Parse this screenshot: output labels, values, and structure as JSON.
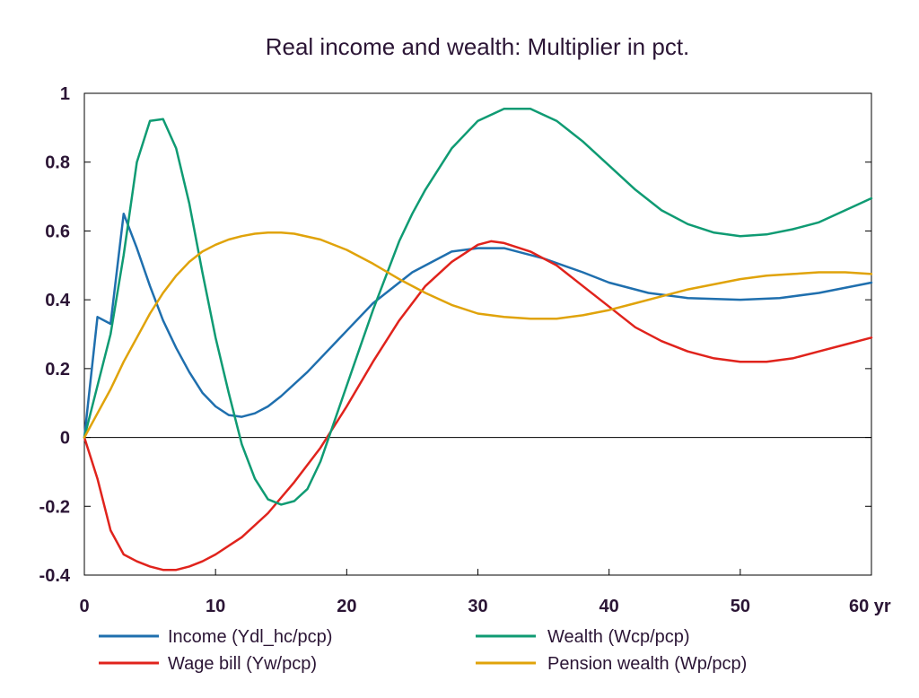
{
  "chart_data": {
    "type": "line",
    "title": "Real income and wealth: Multiplier in pct.",
    "xlabel": "",
    "ylabel": "",
    "x_unit_label": "yr",
    "xlim": [
      0,
      60
    ],
    "ylim": [
      -0.4,
      1.0
    ],
    "xticks": [
      0,
      10,
      20,
      30,
      40,
      50,
      60
    ],
    "xtick_labels": [
      "0",
      "10",
      "20",
      "30",
      "40",
      "50",
      "60 yr"
    ],
    "yticks": [
      -0.4,
      -0.2,
      0,
      0.2,
      0.4,
      0.6,
      0.8,
      1
    ],
    "ytick_labels": [
      "-0.4",
      "-0.2",
      "0",
      "0.2",
      "0.4",
      "0.6",
      "0.8",
      "1"
    ],
    "grid": false,
    "zero_line": true,
    "legend_position": "bottom",
    "series": [
      {
        "name": "Income (Ydl_hc/pcp)",
        "color": "#1f6fae",
        "points": [
          [
            0,
            0
          ],
          [
            1,
            0.35
          ],
          [
            2,
            0.33
          ],
          [
            3,
            0.65
          ],
          [
            4,
            0.55
          ],
          [
            5,
            0.44
          ],
          [
            6,
            0.34
          ],
          [
            7,
            0.26
          ],
          [
            8,
            0.19
          ],
          [
            9,
            0.13
          ],
          [
            10,
            0.09
          ],
          [
            11,
            0.065
          ],
          [
            12,
            0.06
          ],
          [
            13,
            0.07
          ],
          [
            14,
            0.09
          ],
          [
            15,
            0.12
          ],
          [
            17,
            0.19
          ],
          [
            20,
            0.31
          ],
          [
            22,
            0.39
          ],
          [
            25,
            0.48
          ],
          [
            28,
            0.54
          ],
          [
            30,
            0.55
          ],
          [
            32,
            0.55
          ],
          [
            35,
            0.52
          ],
          [
            38,
            0.48
          ],
          [
            40,
            0.45
          ],
          [
            43,
            0.42
          ],
          [
            46,
            0.405
          ],
          [
            50,
            0.4
          ],
          [
            53,
            0.405
          ],
          [
            56,
            0.42
          ],
          [
            60,
            0.45
          ]
        ]
      },
      {
        "name": "Wage bill (Yw/pcp)",
        "color": "#e0231c",
        "points": [
          [
            0,
            0
          ],
          [
            1,
            -0.12
          ],
          [
            2,
            -0.27
          ],
          [
            3,
            -0.34
          ],
          [
            4,
            -0.36
          ],
          [
            5,
            -0.375
          ],
          [
            6,
            -0.385
          ],
          [
            7,
            -0.385
          ],
          [
            8,
            -0.375
          ],
          [
            9,
            -0.36
          ],
          [
            10,
            -0.34
          ],
          [
            12,
            -0.29
          ],
          [
            14,
            -0.22
          ],
          [
            16,
            -0.13
          ],
          [
            18,
            -0.03
          ],
          [
            20,
            0.09
          ],
          [
            22,
            0.22
          ],
          [
            24,
            0.34
          ],
          [
            26,
            0.44
          ],
          [
            28,
            0.51
          ],
          [
            30,
            0.56
          ],
          [
            31,
            0.57
          ],
          [
            32,
            0.565
          ],
          [
            34,
            0.54
          ],
          [
            36,
            0.5
          ],
          [
            38,
            0.44
          ],
          [
            40,
            0.38
          ],
          [
            42,
            0.32
          ],
          [
            44,
            0.28
          ],
          [
            46,
            0.25
          ],
          [
            48,
            0.23
          ],
          [
            50,
            0.22
          ],
          [
            52,
            0.22
          ],
          [
            54,
            0.23
          ],
          [
            56,
            0.25
          ],
          [
            58,
            0.27
          ],
          [
            60,
            0.29
          ]
        ]
      },
      {
        "name": "Wealth (Wcp/pcp)",
        "color": "#0f9b73",
        "points": [
          [
            0,
            0
          ],
          [
            1,
            0.15
          ],
          [
            2,
            0.3
          ],
          [
            3,
            0.53
          ],
          [
            4,
            0.8
          ],
          [
            5,
            0.92
          ],
          [
            6,
            0.925
          ],
          [
            7,
            0.84
          ],
          [
            8,
            0.68
          ],
          [
            9,
            0.48
          ],
          [
            10,
            0.29
          ],
          [
            11,
            0.13
          ],
          [
            12,
            -0.02
          ],
          [
            13,
            -0.12
          ],
          [
            14,
            -0.18
          ],
          [
            15,
            -0.195
          ],
          [
            16,
            -0.185
          ],
          [
            17,
            -0.15
          ],
          [
            18,
            -0.07
          ],
          [
            19,
            0.04
          ],
          [
            20,
            0.15
          ],
          [
            21,
            0.26
          ],
          [
            22,
            0.37
          ],
          [
            23,
            0.47
          ],
          [
            24,
            0.57
          ],
          [
            25,
            0.65
          ],
          [
            26,
            0.72
          ],
          [
            28,
            0.84
          ],
          [
            30,
            0.92
          ],
          [
            32,
            0.955
          ],
          [
            34,
            0.955
          ],
          [
            36,
            0.92
          ],
          [
            38,
            0.86
          ],
          [
            40,
            0.79
          ],
          [
            42,
            0.72
          ],
          [
            44,
            0.66
          ],
          [
            46,
            0.62
          ],
          [
            48,
            0.595
          ],
          [
            50,
            0.585
          ],
          [
            52,
            0.59
          ],
          [
            54,
            0.605
          ],
          [
            56,
            0.625
          ],
          [
            58,
            0.66
          ],
          [
            60,
            0.695
          ]
        ]
      },
      {
        "name": "Pension wealth (Wp/pcp)",
        "color": "#e0a30a",
        "points": [
          [
            0,
            0
          ],
          [
            1,
            0.07
          ],
          [
            2,
            0.14
          ],
          [
            3,
            0.22
          ],
          [
            4,
            0.29
          ],
          [
            5,
            0.36
          ],
          [
            6,
            0.42
          ],
          [
            7,
            0.47
          ],
          [
            8,
            0.51
          ],
          [
            9,
            0.54
          ],
          [
            10,
            0.56
          ],
          [
            11,
            0.575
          ],
          [
            12,
            0.585
          ],
          [
            13,
            0.592
          ],
          [
            14,
            0.595
          ],
          [
            15,
            0.595
          ],
          [
            16,
            0.592
          ],
          [
            18,
            0.575
          ],
          [
            20,
            0.545
          ],
          [
            22,
            0.505
          ],
          [
            24,
            0.46
          ],
          [
            26,
            0.42
          ],
          [
            28,
            0.385
          ],
          [
            30,
            0.36
          ],
          [
            32,
            0.35
          ],
          [
            34,
            0.345
          ],
          [
            36,
            0.345
          ],
          [
            38,
            0.355
          ],
          [
            40,
            0.37
          ],
          [
            42,
            0.39
          ],
          [
            44,
            0.41
          ],
          [
            46,
            0.43
          ],
          [
            48,
            0.445
          ],
          [
            50,
            0.46
          ],
          [
            52,
            0.47
          ],
          [
            54,
            0.475
          ],
          [
            56,
            0.48
          ],
          [
            58,
            0.48
          ],
          [
            60,
            0.475
          ]
        ]
      }
    ],
    "legend_order": [
      0,
      2,
      1,
      3
    ]
  }
}
